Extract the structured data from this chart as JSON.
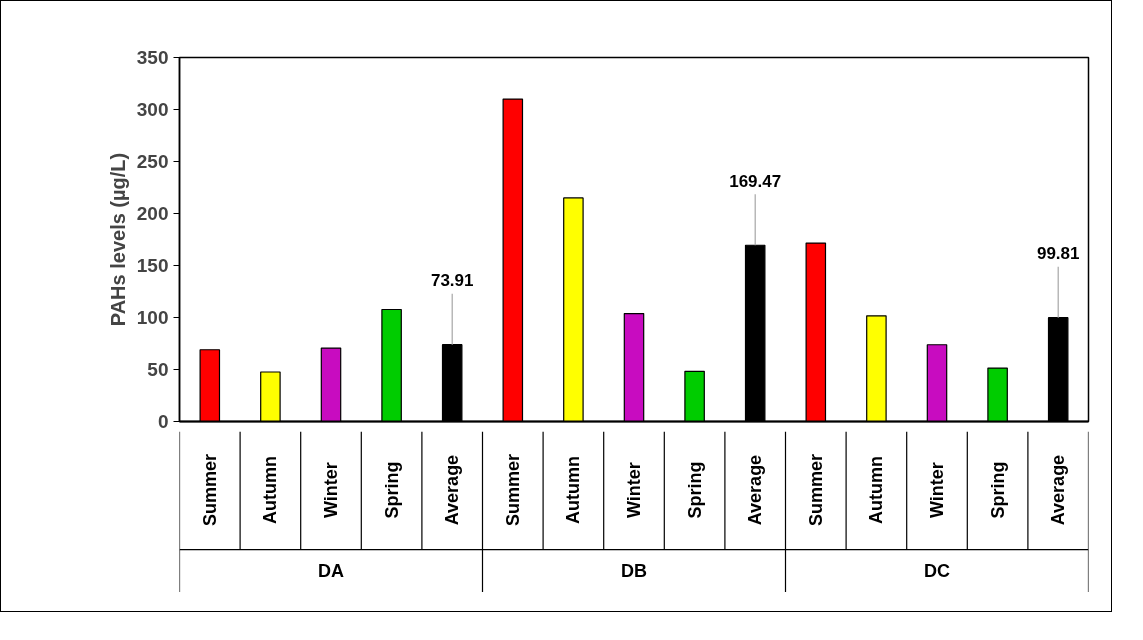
{
  "chart_data": {
    "type": "bar",
    "ylabel": "PAHs levels (µg/L)",
    "categories": [
      "Summer",
      "Autumn",
      "Winter",
      "Spring",
      "Average",
      "Summer",
      "Autumn",
      "Winter",
      "Spring",
      "Average",
      "Summer",
      "Autumn",
      "Winter",
      "Spring",
      "Average"
    ],
    "values": [
      69,
      47.6,
      70.6,
      107.7,
      73.91,
      310,
      215,
      103.8,
      48.2,
      169.47,
      171.6,
      101.6,
      73.8,
      51.4,
      99.81
    ],
    "colors": [
      "#ff0000",
      "#ffff00",
      "#c80cc0",
      "#00cc00",
      "#000000",
      "#ff0000",
      "#ffff00",
      "#c80cc0",
      "#00cc00",
      "#000000",
      "#ff0000",
      "#ffff00",
      "#c80cc0",
      "#00cc00",
      "#000000"
    ],
    "value_labels": [
      null,
      null,
      null,
      null,
      "73.91",
      null,
      null,
      null,
      null,
      "169.47",
      null,
      null,
      null,
      null,
      "99.81"
    ],
    "ylim": [
      0,
      350
    ],
    "yticks": [
      0,
      50,
      100,
      150,
      200,
      250,
      300,
      350
    ],
    "annotations": [
      "DA",
      "DB",
      "DC"
    ]
  }
}
